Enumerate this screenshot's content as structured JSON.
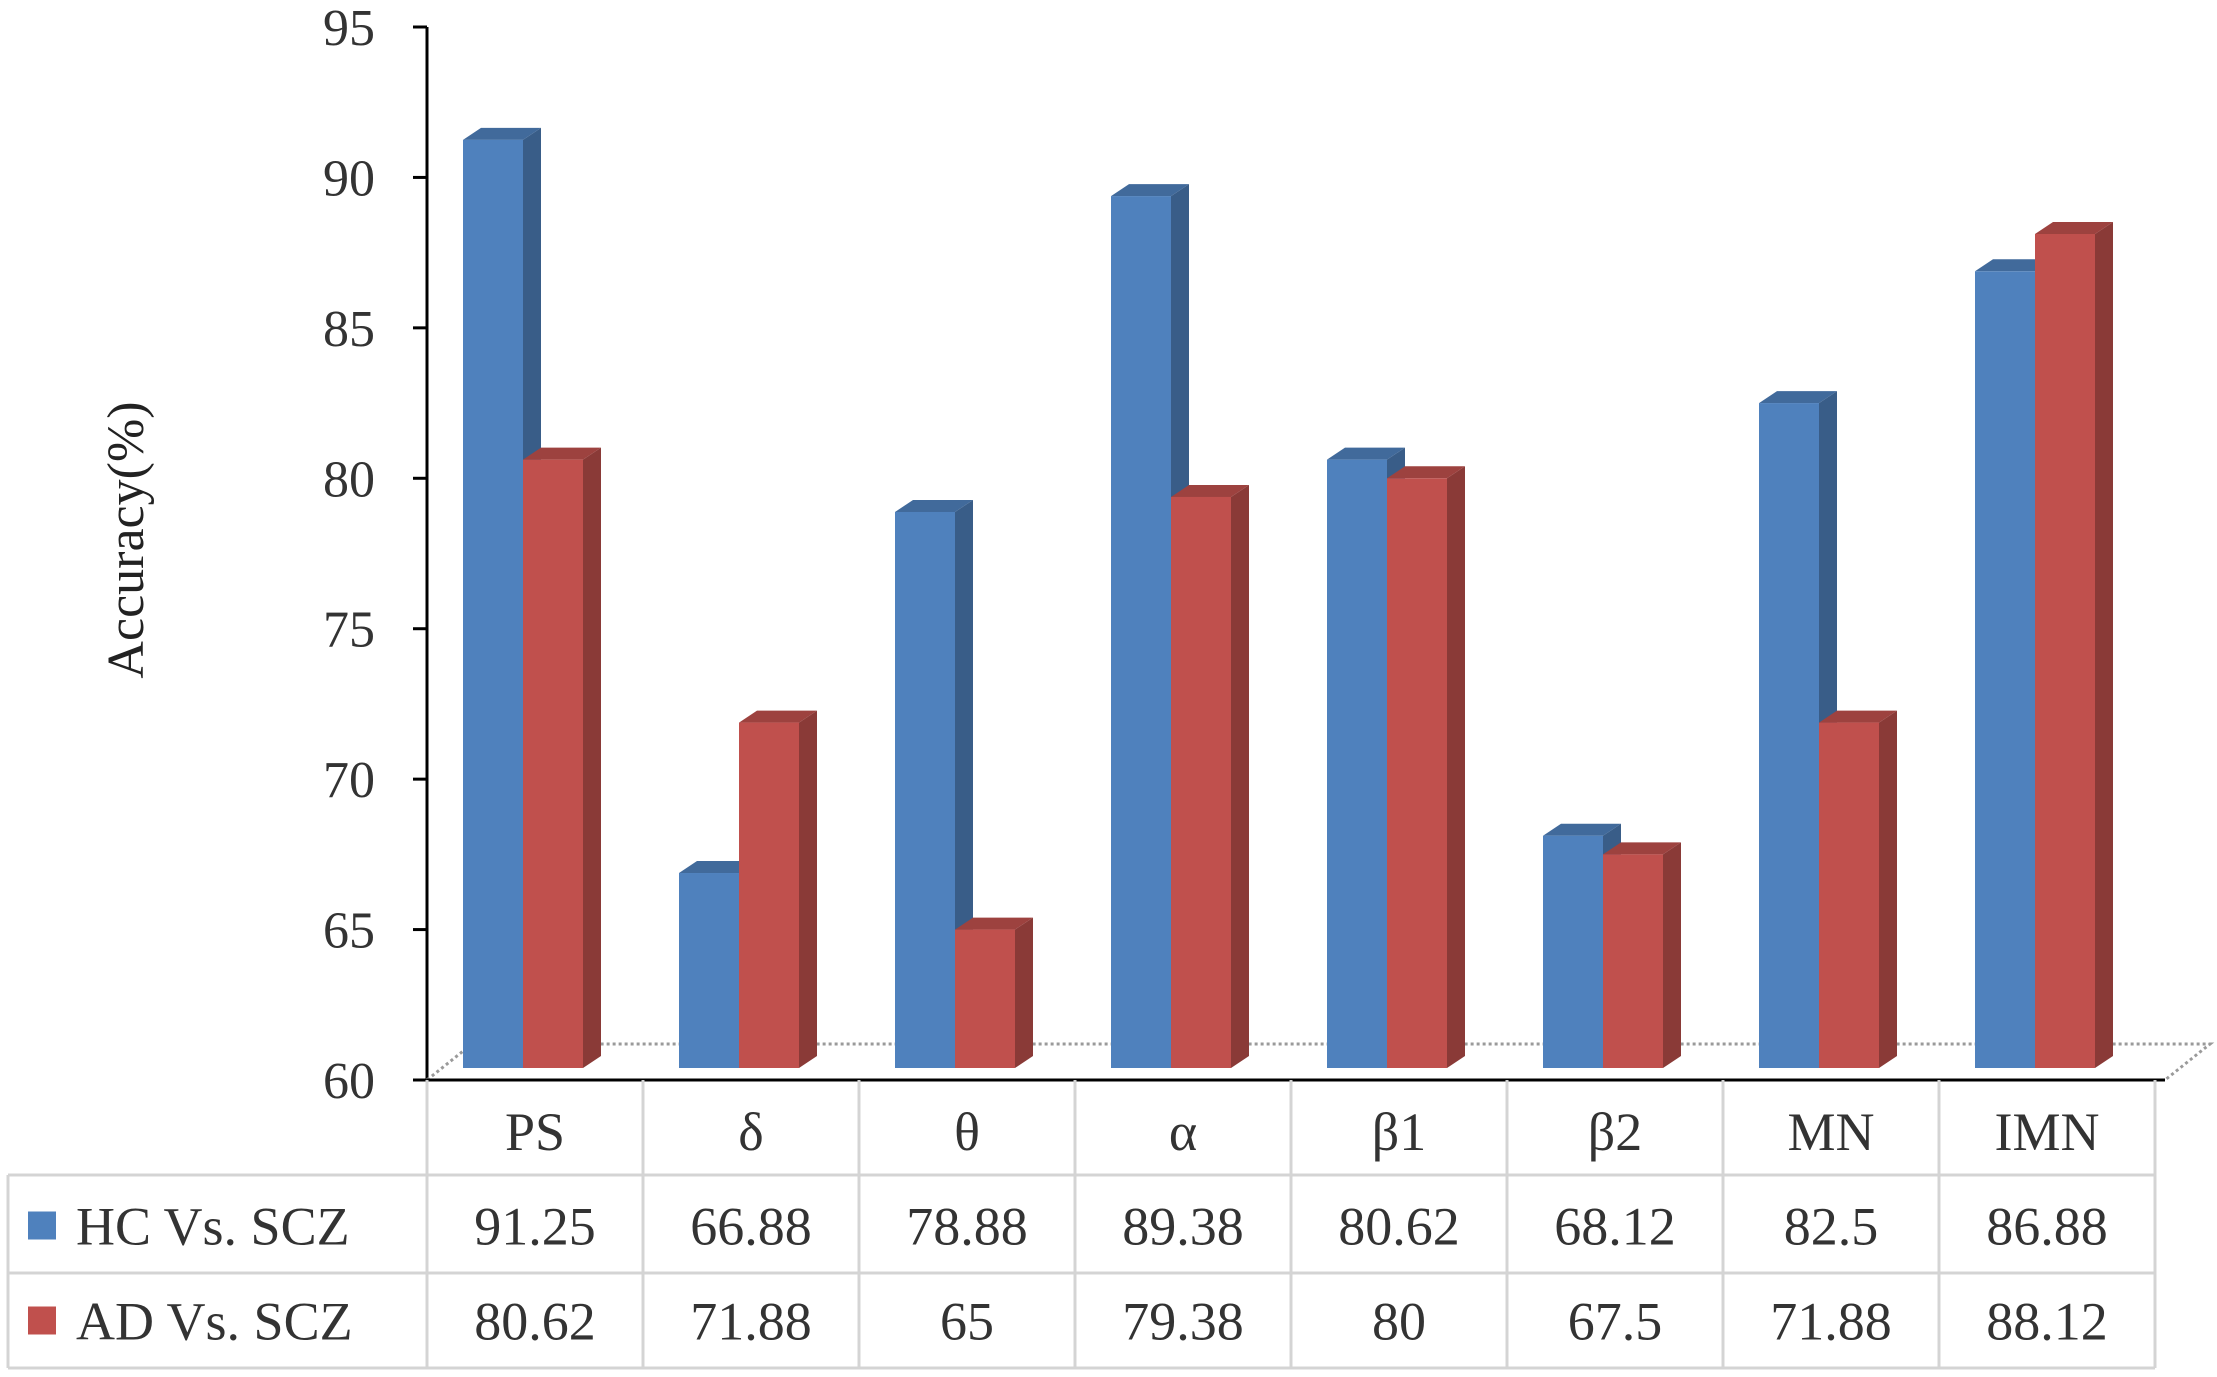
{
  "chart_data": {
    "type": "bar",
    "title": "",
    "xlabel": "",
    "ylabel": "Accuracy(%)",
    "ylim": [
      60,
      95
    ],
    "yticks": [
      60,
      65,
      70,
      75,
      80,
      85,
      90,
      95
    ],
    "categories": [
      "PS",
      "δ",
      "θ",
      "α",
      "β1",
      "β2",
      "MN",
      "IMN"
    ],
    "series": [
      {
        "name": "HC Vs. SCZ",
        "color": "#4f81bd",
        "values": [
          91.25,
          66.88,
          78.88,
          89.38,
          80.62,
          68.12,
          82.5,
          86.88
        ],
        "labels": [
          "91.25",
          "66.88",
          "78.88",
          "89.38",
          "80.62",
          "68.12",
          "82.5",
          "86.88"
        ]
      },
      {
        "name": "AD Vs. SCZ",
        "color": "#c0504d",
        "values": [
          80.62,
          71.88,
          65,
          79.38,
          80,
          67.5,
          71.88,
          88.12
        ],
        "labels": [
          "80.62",
          "71.88",
          "65",
          "79.38",
          "80",
          "67.5",
          "71.88",
          "88.12"
        ]
      }
    ],
    "grid": false,
    "legend": "data-table",
    "style": "3d-bar-with-data-table"
  }
}
